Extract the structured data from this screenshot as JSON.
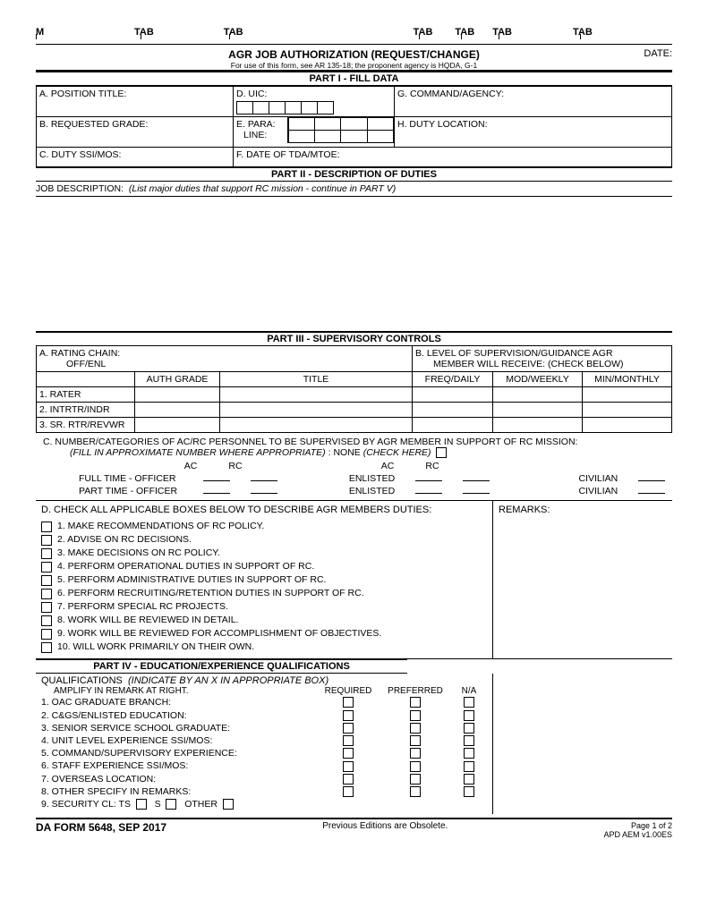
{
  "tabs": {
    "m": "M",
    "tab": "TAB"
  },
  "header": {
    "title": "AGR JOB AUTHORIZATION (REQUEST/CHANGE)",
    "subtitle": "For use of this form, see AR 135-18; the proponent agency is HQDA, G-1",
    "date_label": "DATE:"
  },
  "part1": {
    "heading": "PART I - FILL DATA",
    "a": "A. POSITION TITLE:",
    "b": "B. REQUESTED GRADE:",
    "c": "C. DUTY SSI/MOS:",
    "d": "D. UIC:",
    "e": "E. PARA:",
    "e2": "LINE:",
    "f": "F. DATE OF TDA/MTOE:",
    "g": "G. COMMAND/AGENCY:",
    "h": "H. DUTY LOCATION:"
  },
  "part2": {
    "heading": "PART II - DESCRIPTION OF DUTIES",
    "label": "JOB DESCRIPTION:",
    "hint": "(List major duties that support RC mission - continue in PART V)"
  },
  "part3": {
    "heading": "PART III - SUPERVISORY CONTROLS",
    "a": "A. RATING CHAIN:",
    "a2": "OFF/ENL",
    "b": "B. LEVEL OF SUPERVISION/GUIDANCE AGR",
    "b2": "MEMBER WILL RECEIVE: (CHECK BELOW)",
    "col_auth": "AUTH GRADE",
    "col_title": "TITLE",
    "col_freq": "FREQ/DAILY",
    "col_mod": "MOD/WEEKLY",
    "col_min": "MIN/MONTHLY",
    "row1": "1. RATER",
    "row2": "2. INTRTR/INDR",
    "row3": "3. SR. RTR/REVWR",
    "c": "C. NUMBER/CATEGORIES OF AC/RC PERSONNEL TO BE SUPERVISED BY AGR MEMBER IN SUPPORT OF RC MISSION:",
    "c_fill": "(FILL IN APPROXIMATE NUMBER WHERE APPROPRIATE)",
    "c_none": ": NONE",
    "c_check": "(CHECK HERE)",
    "ac": "AC",
    "rc": "RC",
    "ft_off": "FULL TIME - OFFICER",
    "pt_off": "PART TIME - OFFICER",
    "enl": "ENLISTED",
    "civ": "CIVILIAN",
    "d": "D. CHECK ALL APPLICABLE BOXES BELOW TO DESCRIBE AGR MEMBERS DUTIES:",
    "remarks": "REMARKS:",
    "duties": [
      "1. MAKE RECOMMENDATIONS OF RC POLICY.",
      "2. ADVISE ON RC DECISIONS.",
      "3. MAKE DECISIONS ON RC POLICY.",
      "4. PERFORM OPERATIONAL DUTIES IN SUPPORT OF RC.",
      "5. PERFORM ADMINISTRATIVE DUTIES IN SUPPORT OF RC.",
      "6. PERFORM RECRUITING/RETENTION DUTIES IN SUPPORT OF RC.",
      "7. PERFORM SPECIAL RC PROJECTS.",
      "8. WORK WILL BE REVIEWED IN DETAIL.",
      "9. WORK WILL BE REVIEWED FOR ACCOMPLISHMENT OF OBJECTIVES.",
      "10. WILL WORK PRIMARILY ON THEIR OWN."
    ]
  },
  "part4": {
    "heading": "PART IV - EDUCATION/EXPERIENCE QUALIFICATIONS",
    "qual_label": "QUALIFICATIONS",
    "qual_hint": "(INDICATE BY AN X IN APPROPRIATE BOX)",
    "amplify": "AMPLIFY IN REMARK AT RIGHT.",
    "req": "REQUIRED",
    "pref": "PREFERRED",
    "na": "N/A",
    "rows": [
      "1. OAC GRADUATE BRANCH:",
      "2. C&GS/ENLISTED EDUCATION:",
      "3. SENIOR SERVICE SCHOOL GRADUATE:",
      "4. UNIT LEVEL EXPERIENCE SSI/MOS:",
      "5. COMMAND/SUPERVISORY EXPERIENCE:",
      "6. STAFF EXPERIENCE SSI/MOS:",
      "7. OVERSEAS LOCATION:",
      "8. OTHER SPECIFY IN REMARKS:"
    ],
    "sec": "9. SECURITY CL:  TS",
    "sec_s": "S",
    "sec_other": "OTHER"
  },
  "footer": {
    "form": "DA FORM 5648, SEP 2017",
    "center": "Previous Editions are Obsolete.",
    "page": "Page 1 of 2",
    "version": "APD AEM v1.00ES"
  }
}
